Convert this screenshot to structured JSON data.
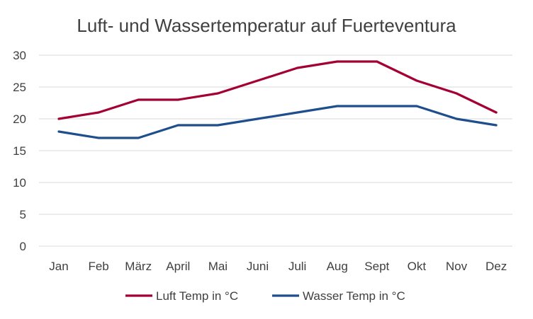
{
  "chart_data": {
    "type": "line",
    "title": "Luft- und Wassertemperatur auf Fuerteventura",
    "xlabel": "",
    "ylabel": "",
    "categories": [
      "Jan",
      "Feb",
      "März",
      "April",
      "Mai",
      "Juni",
      "Juli",
      "Aug",
      "Sept",
      "Okt",
      "Nov",
      "Dez"
    ],
    "series": [
      {
        "name": "Luft Temp in °C",
        "color": "#a50034",
        "values": [
          20,
          21,
          23,
          23,
          24,
          26,
          28,
          29,
          29,
          26,
          24,
          21
        ]
      },
      {
        "name": "Wasser Temp in °C",
        "color": "#1f4e8c",
        "values": [
          18,
          17,
          17,
          19,
          19,
          20,
          21,
          22,
          22,
          22,
          20,
          19
        ]
      }
    ],
    "ylim": [
      0,
      30
    ],
    "yticks": [
      0,
      5,
      10,
      15,
      20,
      25,
      30
    ],
    "grid": true,
    "legend_position": "bottom"
  }
}
